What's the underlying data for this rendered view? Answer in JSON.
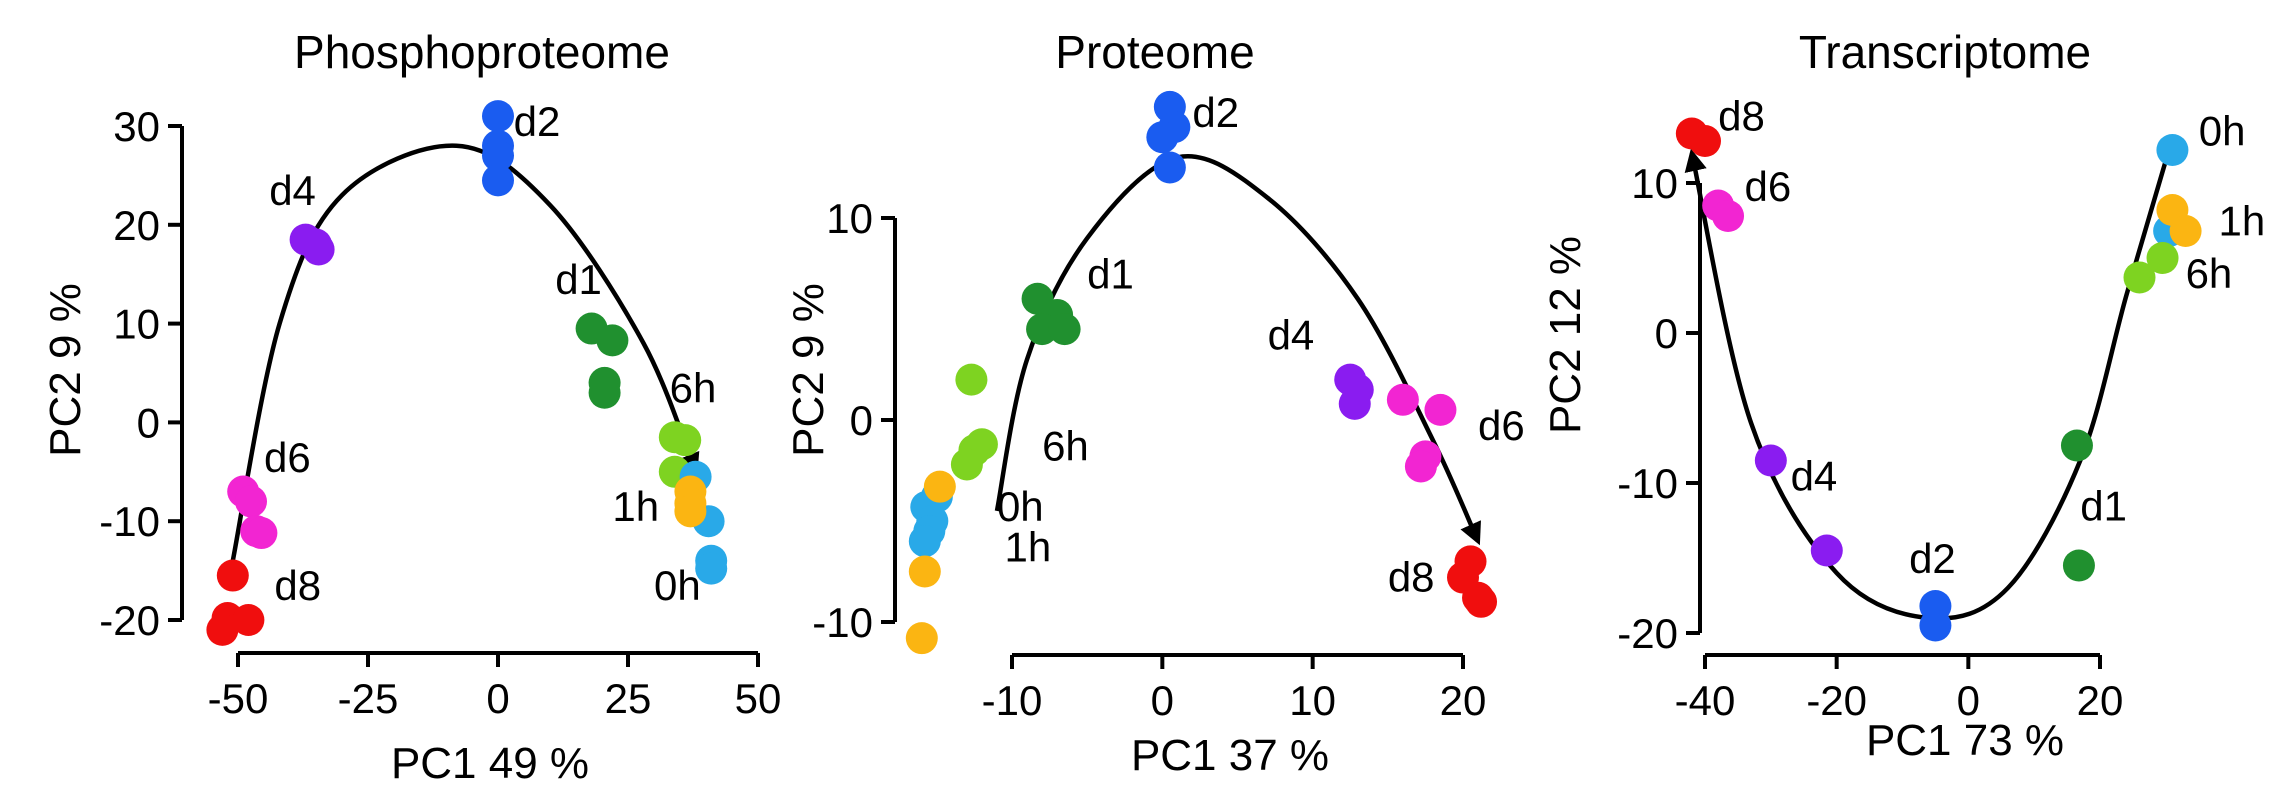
{
  "colors": {
    "0h": "#29a9e8",
    "1h": "#fbb512",
    "6h": "#7ed321",
    "d1": "#20902f",
    "d2": "#1a5cf0",
    "d4": "#8a1cf0",
    "d6": "#f225d2",
    "d8": "#f00e0e",
    "axis": "#000000"
  },
  "chart_data": [
    {
      "type": "scatter",
      "title": "Phosphoproteome",
      "xlabel": "PC1 49 %",
      "ylabel": "PC2 9 %",
      "xlim": [
        -52,
        50
      ],
      "ylim": [
        -21,
        32
      ],
      "xticks": [
        -50,
        -25,
        0,
        25,
        50
      ],
      "yticks": [
        -20,
        -10,
        0,
        10,
        20,
        30
      ],
      "trend_curve": [
        [
          -51,
          -14
        ],
        [
          -42,
          10
        ],
        [
          -30,
          23
        ],
        [
          -8,
          28
        ],
        [
          10,
          22
        ],
        [
          28,
          8
        ],
        [
          38,
          -5
        ]
      ],
      "labels": [
        {
          "text": "d2",
          "x": 3,
          "y": 29
        },
        {
          "text": "d4",
          "x": -44,
          "y": 22
        },
        {
          "text": "d1",
          "x": 11,
          "y": 13
        },
        {
          "text": "6h",
          "x": 33,
          "y": 2
        },
        {
          "text": "1h",
          "x": 22,
          "y": -10
        },
        {
          "text": "0h",
          "x": 30,
          "y": -18
        },
        {
          "text": "d6",
          "x": -45,
          "y": -5
        },
        {
          "text": "d8",
          "x": -43,
          "y": -18
        }
      ],
      "series": [
        {
          "name": "d2",
          "points": [
            [
              0,
              31
            ],
            [
              0,
              28
            ],
            [
              0,
              27
            ],
            [
              0,
              24.5
            ]
          ]
        },
        {
          "name": "d4",
          "points": [
            [
              -37,
              18.5
            ],
            [
              -35,
              18
            ],
            [
              -34.5,
              17.5
            ]
          ]
        },
        {
          "name": "d1",
          "points": [
            [
              18,
              9.5
            ],
            [
              22,
              8.3
            ],
            [
              20.5,
              4
            ],
            [
              20.5,
              3
            ]
          ]
        },
        {
          "name": "6h",
          "points": [
            [
              34,
              -1.5
            ],
            [
              36,
              -1.8
            ],
            [
              34,
              -5
            ]
          ]
        },
        {
          "name": "0h",
          "points": [
            [
              38,
              -5.5
            ],
            [
              40.5,
              -10
            ],
            [
              41,
              -14
            ],
            [
              41,
              -14.8
            ]
          ]
        },
        {
          "name": "1h",
          "points": [
            [
              37,
              -7
            ],
            [
              37,
              -8.2
            ],
            [
              37,
              -9
            ]
          ]
        },
        {
          "name": "d6",
          "points": [
            [
              -49,
              -7
            ],
            [
              -47.5,
              -8
            ],
            [
              -46.5,
              -11
            ],
            [
              -45.5,
              -11.2
            ]
          ]
        },
        {
          "name": "d8",
          "points": [
            [
              -51,
              -15.5
            ],
            [
              -52,
              -19.8
            ],
            [
              -48,
              -20
            ],
            [
              -53,
              -21
            ]
          ]
        }
      ]
    },
    {
      "type": "scatter",
      "title": "Proteome",
      "xlabel": "PC1 37 %",
      "ylabel": "PC2 9 %",
      "xlim": [
        -13,
        22
      ],
      "ylim": [
        -11,
        13
      ],
      "xticks": [
        -10,
        0,
        10,
        20
      ],
      "yticks": [
        -10,
        0,
        10
      ],
      "trend_curve": [
        [
          -11,
          -4.5
        ],
        [
          -9,
          3
        ],
        [
          -5,
          9
        ],
        [
          1,
          13
        ],
        [
          7,
          11
        ],
        [
          13,
          6
        ],
        [
          18,
          -1
        ],
        [
          21,
          -6
        ]
      ],
      "labels": [
        {
          "text": "d2",
          "x": 2,
          "y": 14.5
        },
        {
          "text": "d1",
          "x": -5,
          "y": 6.5
        },
        {
          "text": "d4",
          "x": 7,
          "y": 3.5
        },
        {
          "text": "d6",
          "x": 21,
          "y": -1
        },
        {
          "text": "d8",
          "x": 15,
          "y": -8.5
        },
        {
          "text": "6h",
          "x": -8,
          "y": -2
        },
        {
          "text": "0h",
          "x": -11,
          "y": -5
        },
        {
          "text": "1h",
          "x": -10.5,
          "y": -7
        }
      ],
      "series": [
        {
          "name": "d2",
          "points": [
            [
              0.5,
              15.5
            ],
            [
              0.8,
              14.5
            ],
            [
              0,
              14
            ],
            [
              0.5,
              12.5
            ]
          ]
        },
        {
          "name": "d1",
          "points": [
            [
              -8.3,
              6
            ],
            [
              -7,
              5.2
            ],
            [
              -8,
              4.5
            ],
            [
              -6.5,
              4.5
            ]
          ]
        },
        {
          "name": "d4",
          "points": [
            [
              12.5,
              2
            ],
            [
              13,
              1.5
            ],
            [
              12.8,
              0.8
            ]
          ]
        },
        {
          "name": "d6",
          "points": [
            [
              16,
              1
            ],
            [
              18.5,
              0.5
            ],
            [
              17.5,
              -1.8
            ],
            [
              17.2,
              -2.3
            ]
          ]
        },
        {
          "name": "d8",
          "points": [
            [
              20.5,
              -7
            ],
            [
              20,
              -7.8
            ],
            [
              21,
              -8.8
            ],
            [
              21.2,
              -9
            ]
          ]
        },
        {
          "name": "6h",
          "points": [
            [
              -12.7,
              2
            ],
            [
              -12,
              -1.2
            ],
            [
              -12.5,
              -1.5
            ],
            [
              -13,
              -2.2
            ]
          ]
        },
        {
          "name": "0h",
          "points": [
            [
              -15,
              -3.8
            ],
            [
              -15.7,
              -4.3
            ],
            [
              -15.3,
              -5
            ],
            [
              -15.5,
              -5.5
            ],
            [
              -15.8,
              -6
            ]
          ]
        },
        {
          "name": "1h",
          "points": [
            [
              -14.8,
              -3.3
            ],
            [
              -15.8,
              -7.5
            ],
            [
              -16,
              -10.8
            ]
          ]
        }
      ]
    },
    {
      "type": "scatter",
      "title": "Transcriptome",
      "xlabel": "PC1 73 %",
      "ylabel": "PC2 12 %",
      "xlim": [
        -43,
        35
      ],
      "ylim": [
        -20,
        14
      ],
      "xticks": [
        -40,
        -20,
        0,
        20
      ],
      "yticks": [
        -20,
        -10,
        0,
        10
      ],
      "trend_curve": [
        [
          -42,
          12
        ],
        [
          -33,
          -6
        ],
        [
          -20,
          -16
        ],
        [
          -6,
          -19
        ],
        [
          6,
          -17
        ],
        [
          17,
          -8.5
        ],
        [
          24,
          2.5
        ],
        [
          30,
          11.5
        ]
      ],
      "labels": [
        {
          "text": "d8",
          "x": -38,
          "y": 13.5
        },
        {
          "text": "d6",
          "x": -34,
          "y": 8.8
        },
        {
          "text": "0h",
          "x": 35,
          "y": 12.5
        },
        {
          "text": "1h",
          "x": 38,
          "y": 6.5
        },
        {
          "text": "6h",
          "x": 33,
          "y": 3
        },
        {
          "text": "d4",
          "x": -27,
          "y": -10.5
        },
        {
          "text": "d1",
          "x": 17,
          "y": -12.5
        },
        {
          "text": "d2",
          "x": -9,
          "y": -16
        }
      ],
      "series": [
        {
          "name": "d8",
          "points": [
            [
              -42,
              13.3
            ],
            [
              -40,
              12.8
            ]
          ]
        },
        {
          "name": "d6",
          "points": [
            [
              -38,
              8.5
            ],
            [
              -36.5,
              7.8
            ]
          ]
        },
        {
          "name": "0h",
          "points": [
            [
              31,
              12.2
            ],
            [
              30.5,
              6.8
            ]
          ]
        },
        {
          "name": "1h",
          "points": [
            [
              31,
              8.2
            ],
            [
              33,
              6.8
            ]
          ]
        },
        {
          "name": "6h",
          "points": [
            [
              29.5,
              5
            ],
            [
              26,
              3.7
            ]
          ]
        },
        {
          "name": "d4",
          "points": [
            [
              -30,
              -8.5
            ],
            [
              -21.5,
              -14.5
            ]
          ]
        },
        {
          "name": "d1",
          "points": [
            [
              16.5,
              -7.5
            ],
            [
              16.8,
              -15.5
            ]
          ]
        },
        {
          "name": "d2",
          "points": [
            [
              -5,
              -18.2
            ],
            [
              -5,
              -19.5
            ]
          ]
        }
      ]
    }
  ]
}
